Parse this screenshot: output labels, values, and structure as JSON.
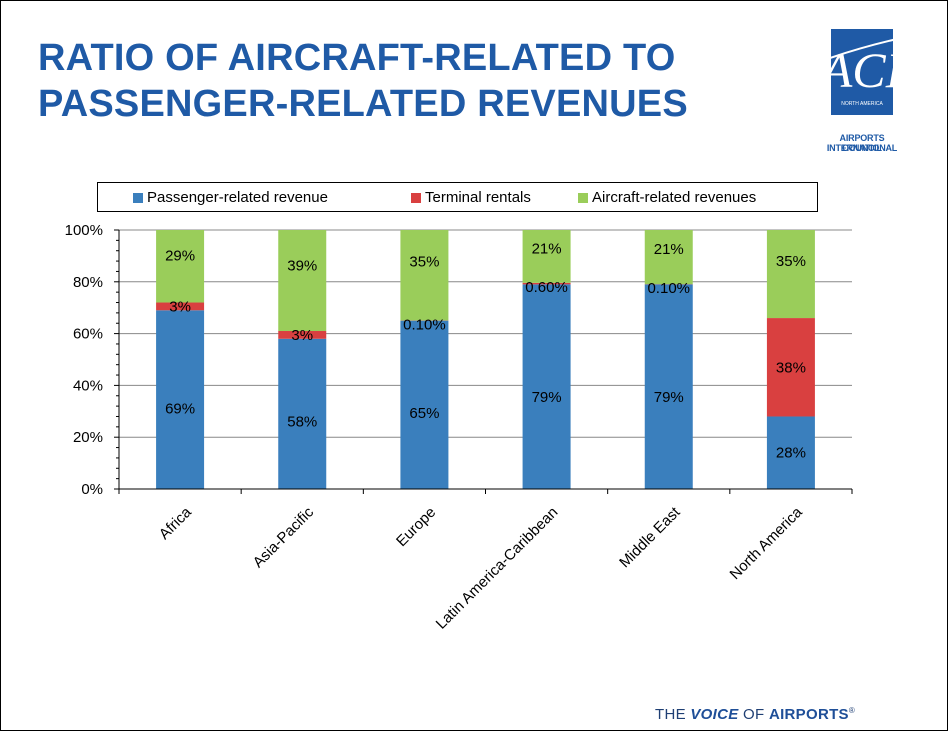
{
  "slide": {
    "title_line1": "RATIO OF AIRCRAFT-RELATED TO",
    "title_line2": "PASSENGER-RELATED REVENUES",
    "logo": {
      "org_line1": "AIRPORTS COUNCIL",
      "org_line2": "INTERNATIONAL",
      "small_text": "NORTH AMERICA",
      "mark_text": "ACI"
    },
    "footer": {
      "prefix": "THE ",
      "emphasis": "VOICE",
      "middle": " OF ",
      "brand": "AIRPORTS",
      "mark": "®"
    },
    "colors": {
      "title": "#1f5aa6",
      "passenger": "#3a7fbd",
      "terminal": "#d94040",
      "aircraft": "#9acd5a"
    }
  },
  "chart_data": {
    "type": "bar",
    "stacked": true,
    "categories": [
      "Africa",
      "Asia-Pacific",
      "Europe",
      "Latin America-Caribbean",
      "Middle East",
      "North America"
    ],
    "series": [
      {
        "name": "Passenger-related revenue",
        "values": [
          69,
          58,
          65,
          79,
          79,
          28
        ],
        "labels": [
          "69%",
          "58%",
          "65%",
          "79%",
          "79%",
          "28%"
        ],
        "color": "#3a7fbd"
      },
      {
        "name": "Terminal rentals",
        "values": [
          3,
          3,
          0.1,
          0.6,
          0.1,
          38
        ],
        "labels": [
          "3%",
          "3%",
          "0.10%",
          "0.60%",
          "0.10%",
          "38%"
        ],
        "color": "#d94040"
      },
      {
        "name": "Aircraft-related revenues",
        "values": [
          29,
          39,
          35,
          21,
          21,
          35
        ],
        "labels": [
          "29%",
          "39%",
          "35%",
          "21%",
          "21%",
          "35%"
        ],
        "color": "#9acd5a"
      }
    ],
    "yticks": [
      "0%",
      "20%",
      "40%",
      "60%",
      "80%",
      "100%"
    ],
    "ylim": [
      0,
      100
    ],
    "grid": true,
    "legend_position": "top"
  }
}
